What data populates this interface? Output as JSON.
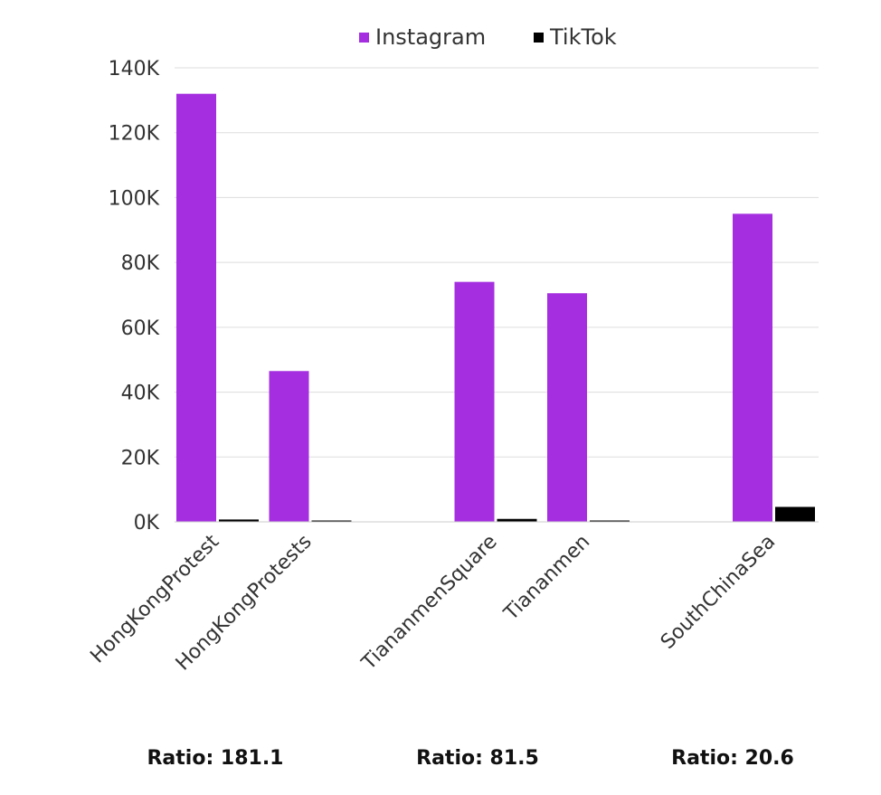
{
  "chart_data": {
    "type": "bar",
    "categories": [
      "HongKongProtest",
      "HongKongProtests",
      "TiananmenSquare",
      "Tiananmen",
      "SouthChinaSea"
    ],
    "series": [
      {
        "name": "Instagram",
        "color": "#a52fe0",
        "values": [
          132000,
          46500,
          74000,
          70500,
          95000
        ]
      },
      {
        "name": "TikTok",
        "color": "#000000",
        "values": [
          729,
          170,
          908,
          400,
          4611
        ]
      }
    ],
    "ylim": [
      0,
      140000
    ],
    "yticks": [
      {
        "value": 0,
        "label": "0K"
      },
      {
        "value": 20000,
        "label": "20K"
      },
      {
        "value": 40000,
        "label": "40K"
      },
      {
        "value": 60000,
        "label": "60K"
      },
      {
        "value": 80000,
        "label": "80K"
      },
      {
        "value": 100000,
        "label": "100K"
      },
      {
        "value": 120000,
        "label": "120K"
      },
      {
        "value": 140000,
        "label": "140K"
      }
    ],
    "grid": true,
    "legend_position": "top",
    "annotations": [
      "Ratio: 181.1",
      "Ratio: 81.5",
      "Ratio: 20.6"
    ]
  }
}
